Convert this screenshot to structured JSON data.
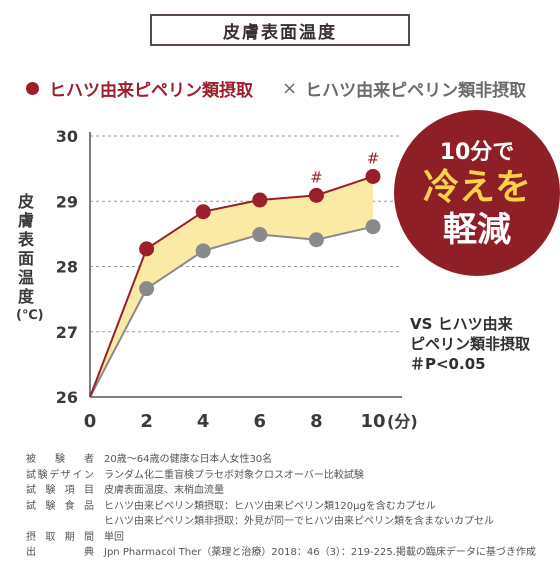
{
  "title": "皮膚表面温度",
  "legend": {
    "intake_label": "ヒハツ由来ピペリン類摂取",
    "nonintake_label": "ヒハツ由来ピペリン類非摂取",
    "intake_color": "#9b1f2a",
    "nonintake_color": "#8a8a8a",
    "fill_color": "#fbeaa6"
  },
  "badge": {
    "line1": "10分で",
    "line2": "冷えを",
    "line3": "軽減"
  },
  "note": {
    "line1": "VS ヒハツ由来",
    "line2": "ピペリン類非摂取",
    "line3": "＃P<0.05"
  },
  "ylabel_chars": [
    "皮",
    "膚",
    "表",
    "面",
    "温",
    "度",
    "(℃)"
  ],
  "chart_data": {
    "type": "line",
    "x": [
      0,
      2,
      4,
      6,
      8,
      10
    ],
    "xlabel": "(分)",
    "ylim": [
      26,
      30
    ],
    "yticks": [
      26,
      27,
      28,
      29,
      30
    ],
    "xticks": [
      0,
      2,
      4,
      6,
      8,
      10
    ],
    "series": [
      {
        "name": "ヒハツ由来ピペリン類摂取",
        "values": [
          26.0,
          28.27,
          28.84,
          29.02,
          29.09,
          29.38
        ],
        "color": "#9b1f2a"
      },
      {
        "name": "ヒハツ由来ピペリン類非摂取",
        "values": [
          26.0,
          27.66,
          28.24,
          28.49,
          28.41,
          28.61
        ],
        "color": "#8a8a8a"
      }
    ],
    "significance": [
      {
        "x": 8,
        "mark": "#"
      },
      {
        "x": 10,
        "mark": "#"
      }
    ]
  },
  "info": [
    {
      "key": "被験者",
      "value": "20歳〜64歳の健康な日本人女性30名"
    },
    {
      "key": "試験デザイン",
      "value": "ランダム化二重盲検プラセボ対象クロスオーバー比較試験"
    },
    {
      "key": "試験項目",
      "value": "皮膚表面温度、末梢血流量"
    },
    {
      "key": "試験食品",
      "value": "ヒハツ由来ピペリン類摂取：ヒハツ由来ピペリン類120μgを含むカプセル"
    },
    {
      "key": "",
      "value": "ヒハツ由来ピペリン類非摂取：外見が同一でヒハツ由来ピペリン類を含まないカプセル"
    },
    {
      "key": "摂取期間",
      "value": "単回"
    },
    {
      "key": "出典",
      "value": "Jpn Pharmacol Ther（薬理と治療）2018：46（3）：219-225.掲載の臨床データに基づき作成"
    }
  ]
}
